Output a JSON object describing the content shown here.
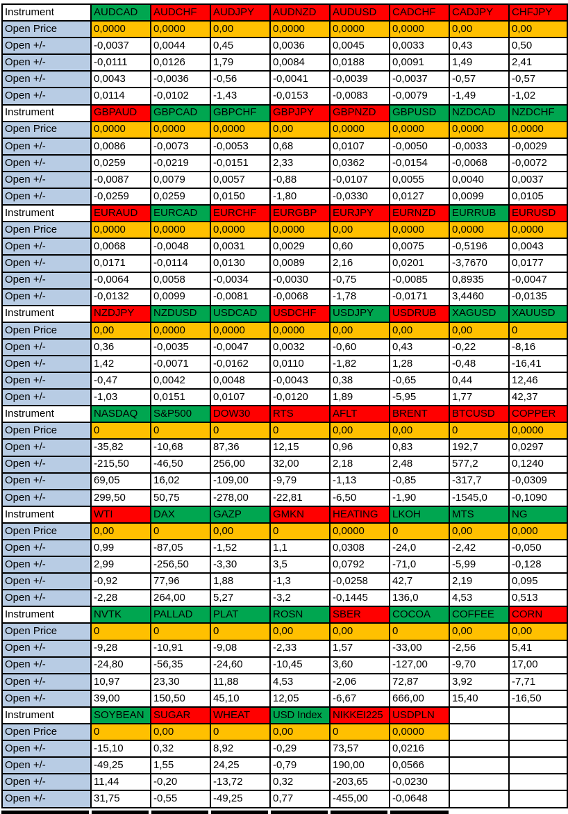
{
  "labels": {
    "instrument": "Instrument",
    "open_price": "Open Price",
    "open_change": "Open +/-"
  },
  "colors": {
    "green": "#00A650",
    "red": "#FF0000",
    "amber": "#FFC000",
    "label_blue": "#B8CCE4",
    "grid": "#000000"
  },
  "table": {
    "sections": [
      {
        "instruments": [
          {
            "label": "AUDCAD",
            "color": "green"
          },
          {
            "label": "AUDCHF",
            "color": "red"
          },
          {
            "label": "AUDJPY",
            "color": "red"
          },
          {
            "label": "AUDNZD",
            "color": "red"
          },
          {
            "label": "AUDUSD",
            "color": "red"
          },
          {
            "label": "CADCHF",
            "color": "red"
          },
          {
            "label": "CADJPY",
            "color": "red"
          },
          {
            "label": "CHFJPY",
            "color": "red"
          }
        ],
        "open_price": [
          "0,0000",
          "0,0000",
          "0,00",
          "0,0000",
          "0,0000",
          "0,0000",
          "0,00",
          "0,00"
        ],
        "change_rows": [
          [
            "-0,0037",
            "0,0044",
            "0,45",
            "0,0036",
            "0,0045",
            "0,0033",
            "0,43",
            "0,50"
          ],
          [
            "-0,0111",
            "0,0126",
            "1,79",
            "0,0084",
            "0,0188",
            "0,0091",
            "1,49",
            "2,41"
          ],
          [
            "0,0043",
            "-0,0036",
            "-0,56",
            "-0,0041",
            "-0,0039",
            "-0,0037",
            "-0,57",
            "-0,57"
          ],
          [
            "0,0114",
            "-0,0102",
            "-1,43",
            "-0,0153",
            "-0,0083",
            "-0,0079",
            "-1,49",
            "-1,02"
          ]
        ]
      },
      {
        "instruments": [
          {
            "label": "GBPAUD",
            "color": "red"
          },
          {
            "label": "GBPCAD",
            "color": "green"
          },
          {
            "label": "GBPCHF",
            "color": "green"
          },
          {
            "label": "GBPJPY",
            "color": "red"
          },
          {
            "label": "GBPNZD",
            "color": "red"
          },
          {
            "label": "GBPUSD",
            "color": "green"
          },
          {
            "label": "NZDCAD",
            "color": "green"
          },
          {
            "label": "NZDCHF",
            "color": "green"
          }
        ],
        "open_price": [
          "0,0000",
          "0,0000",
          "0,0000",
          "0,00",
          "0,0000",
          "0,0000",
          "0,0000",
          "0,0000"
        ],
        "change_rows": [
          [
            "0,0086",
            "-0,0073",
            "-0,0053",
            "0,68",
            "0,0107",
            "-0,0050",
            "-0,0033",
            "-0,0029"
          ],
          [
            "0,0259",
            "-0,0219",
            "-0,0151",
            "2,33",
            "0,0362",
            "-0,0154",
            "-0,0068",
            "-0,0072"
          ],
          [
            "-0,0087",
            "0,0079",
            "0,0057",
            "-0,88",
            "-0,0107",
            "0,0055",
            "0,0040",
            "0,0037"
          ],
          [
            "-0,0259",
            "0,0259",
            "0,0150",
            "-1,80",
            "-0,0330",
            "0,0127",
            "0,0099",
            "0,0105"
          ]
        ]
      },
      {
        "instruments": [
          {
            "label": "EURAUD",
            "color": "red"
          },
          {
            "label": "EURCAD",
            "color": "green"
          },
          {
            "label": "EURCHF",
            "color": "red"
          },
          {
            "label": "EURGBP",
            "color": "red"
          },
          {
            "label": "EURJPY",
            "color": "red"
          },
          {
            "label": "EURNZD",
            "color": "red"
          },
          {
            "label": "EURRUB",
            "color": "green"
          },
          {
            "label": "EURUSD",
            "color": "red"
          }
        ],
        "open_price": [
          "0,0000",
          "0,0000",
          "0,0000",
          "0,0000",
          "0,00",
          "0,0000",
          "0,0000",
          "0,0000"
        ],
        "change_rows": [
          [
            "0,0068",
            "-0,0048",
            "0,0031",
            "0,0029",
            "0,60",
            "0,0075",
            "-0,5196",
            "0,0043"
          ],
          [
            "0,0171",
            "-0,0114",
            "0,0130",
            "0,0089",
            "2,16",
            "0,0201",
            "-3,7670",
            "0,0177"
          ],
          [
            "-0,0064",
            "0,0058",
            "-0,0034",
            "-0,0030",
            "-0,75",
            "-0,0085",
            "0,8935",
            "-0,0047"
          ],
          [
            "-0,0132",
            "0,0099",
            "-0,0081",
            "-0,0068",
            "-1,78",
            "-0,0171",
            "3,4460",
            "-0,0135"
          ]
        ]
      },
      {
        "instruments": [
          {
            "label": "NZDJPY",
            "color": "red"
          },
          {
            "label": "NZDUSD",
            "color": "green"
          },
          {
            "label": "USDCAD",
            "color": "green"
          },
          {
            "label": "USDCHF",
            "color": "red"
          },
          {
            "label": "USDJPY",
            "color": "green"
          },
          {
            "label": "USDRUB",
            "color": "red"
          },
          {
            "label": "XAGUSD",
            "color": "green"
          },
          {
            "label": "XAUUSD",
            "color": "green"
          }
        ],
        "open_price": [
          "0,00",
          "0,0000",
          "0,0000",
          "0,0000",
          "0,00",
          "0,00",
          "0,00",
          "0"
        ],
        "change_rows": [
          [
            "0,36",
            "-0,0035",
            "-0,0047",
            "0,0032",
            "-0,60",
            "0,43",
            "-0,22",
            "-8,16"
          ],
          [
            "1,42",
            "-0,0071",
            "-0,0162",
            "0,0110",
            "-1,82",
            "1,28",
            "-0,48",
            "-16,41"
          ],
          [
            "-0,47",
            "0,0042",
            "0,0048",
            "-0,0043",
            "0,38",
            "-0,65",
            "0,44",
            "12,46"
          ],
          [
            "-1,03",
            "0,0151",
            "0,0107",
            "-0,0120",
            "1,89",
            "-5,95",
            "1,77",
            "42,37"
          ]
        ]
      },
      {
        "instruments": [
          {
            "label": "NASDAQ",
            "color": "green"
          },
          {
            "label": "S&P500",
            "color": "green"
          },
          {
            "label": "DOW30",
            "color": "red"
          },
          {
            "label": "RTS",
            "color": "red"
          },
          {
            "label": "AFLT",
            "color": "red"
          },
          {
            "label": "BRENT",
            "color": "red"
          },
          {
            "label": "BTCUSD",
            "color": "red"
          },
          {
            "label": "COPPER",
            "color": "red"
          }
        ],
        "open_price": [
          "0",
          "0",
          "0",
          "0",
          "0,00",
          "0,00",
          "0",
          "0,0000"
        ],
        "change_rows": [
          [
            "-35,82",
            "-10,68",
            "87,36",
            "12,15",
            "0,96",
            "0,83",
            "192,7",
            "0,0297"
          ],
          [
            "-215,50",
            "-46,50",
            "256,00",
            "32,00",
            "2,18",
            "2,48",
            "577,2",
            "0,1240"
          ],
          [
            "69,05",
            "16,02",
            "-109,00",
            "-9,79",
            "-1,13",
            "-0,85",
            "-317,7",
            "-0,0309"
          ],
          [
            "299,50",
            "50,75",
            "-278,00",
            "-22,81",
            "-6,50",
            "-1,90",
            "-1545,0",
            "-0,1090"
          ]
        ]
      },
      {
        "instruments": [
          {
            "label": "WTI",
            "color": "red"
          },
          {
            "label": "DAX",
            "color": "green"
          },
          {
            "label": "GAZP",
            "color": "green"
          },
          {
            "label": "GMKN",
            "color": "red"
          },
          {
            "label": "HEATING",
            "color": "red"
          },
          {
            "label": "LKOH",
            "color": "green"
          },
          {
            "label": "MTS",
            "color": "green"
          },
          {
            "label": "NG",
            "color": "green"
          }
        ],
        "open_price": [
          "0,00",
          "0",
          "0,00",
          "0",
          "0,0000",
          "0",
          "0,00",
          "0,000"
        ],
        "change_rows": [
          [
            "0,99",
            "-87,05",
            "-1,52",
            "1,1",
            "0,0308",
            "-24,0",
            "-2,42",
            "-0,050"
          ],
          [
            "2,99",
            "-256,50",
            "-3,30",
            "3,5",
            "0,0792",
            "-71,0",
            "-5,99",
            "-0,128"
          ],
          [
            "-0,92",
            "77,96",
            "1,88",
            "-1,3",
            "-0,0258",
            "42,7",
            "2,19",
            "0,095"
          ],
          [
            "-2,28",
            "264,00",
            "5,27",
            "-3,2",
            "-0,1445",
            "136,0",
            "4,53",
            "0,513"
          ]
        ]
      },
      {
        "instruments": [
          {
            "label": "NVTK",
            "color": "green"
          },
          {
            "label": "PALLAD",
            "color": "green"
          },
          {
            "label": "PLAT",
            "color": "green"
          },
          {
            "label": "ROSN",
            "color": "green"
          },
          {
            "label": "SBER",
            "color": "red"
          },
          {
            "label": "COCOA",
            "color": "green"
          },
          {
            "label": "COFFEE",
            "color": "green"
          },
          {
            "label": "CORN",
            "color": "red"
          }
        ],
        "open_price": [
          "0",
          "0",
          "0",
          "0,00",
          "0,00",
          "0",
          "0,00",
          "0,00"
        ],
        "change_rows": [
          [
            "-9,28",
            "-10,91",
            "-9,08",
            "-2,33",
            "1,57",
            "-33,00",
            "-2,56",
            "5,41"
          ],
          [
            "-24,80",
            "-56,35",
            "-24,60",
            "-10,45",
            "3,60",
            "-127,00",
            "-9,70",
            "17,00"
          ],
          [
            "10,97",
            "23,30",
            "11,88",
            "4,53",
            "-2,06",
            "72,87",
            "3,92",
            "-7,71"
          ],
          [
            "39,00",
            "150,50",
            "45,10",
            "12,05",
            "-6,67",
            "666,00",
            "15,40",
            "-16,50"
          ]
        ]
      },
      {
        "instruments": [
          {
            "label": "SOYBEAN",
            "color": "green"
          },
          {
            "label": "SUGAR",
            "color": "red"
          },
          {
            "label": "WHEAT",
            "color": "red"
          },
          {
            "label": "USD Index",
            "color": "green"
          },
          {
            "label": "NIKKEI225",
            "color": "red"
          },
          {
            "label": "USDPLN",
            "color": "red"
          }
        ],
        "open_price": [
          "0",
          "0,00",
          "0",
          "0,00",
          "0",
          "0,0000"
        ],
        "change_rows": [
          [
            "-15,10",
            "0,32",
            "8,92",
            "-0,29",
            "73,57",
            "0,0216"
          ],
          [
            "-49,25",
            "1,55",
            "24,25",
            "-0,79",
            "190,00",
            "0,0566"
          ],
          [
            "11,44",
            "-0,20",
            "-13,72",
            "0,32",
            "-203,65",
            "-0,0230"
          ],
          [
            "31,75",
            "-0,55",
            "-49,25",
            "0,77",
            "-455,00",
            "-0,0648"
          ]
        ]
      }
    ]
  }
}
